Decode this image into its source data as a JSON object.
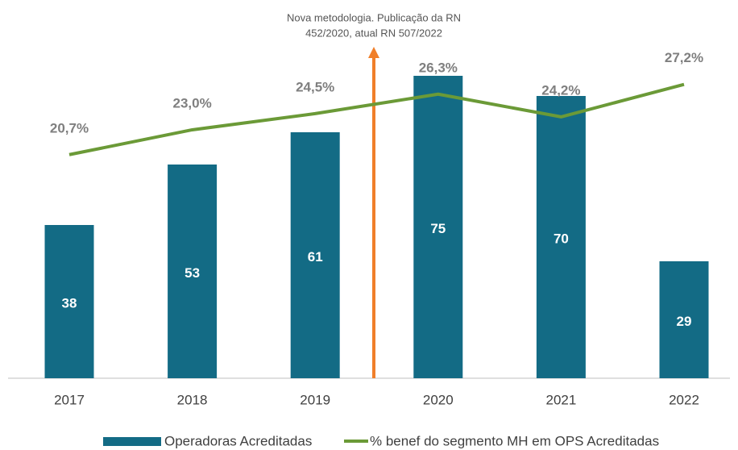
{
  "chart_data": {
    "type": "bar-line",
    "annotation": [
      "Nova metodologia. Publicação da RN",
      "452/2020, atual RN 507/2022"
    ],
    "categories": [
      "2017",
      "2018",
      "2019",
      "2020",
      "2021",
      "2022"
    ],
    "series": [
      {
        "name": "Operadoras Acreditadas",
        "color": "#136b85",
        "type": "bar",
        "values": [
          38,
          53,
          61,
          75,
          70,
          29
        ]
      },
      {
        "name": "% benef do segmento MH em OPS Acreditadas",
        "color": "#6b9a37",
        "type": "line",
        "axis": "y2",
        "values": [
          20.7,
          23.0,
          24.5,
          26.3,
          24.2,
          27.2
        ],
        "value_labels": [
          "20,7%",
          "23,0%",
          "24,5%",
          "26,3%",
          "24,2%",
          "27,2%"
        ]
      }
    ],
    "ylim": [
      0,
      90
    ],
    "y2lim": [
      0,
      33.6
    ],
    "legend": "bottom"
  }
}
